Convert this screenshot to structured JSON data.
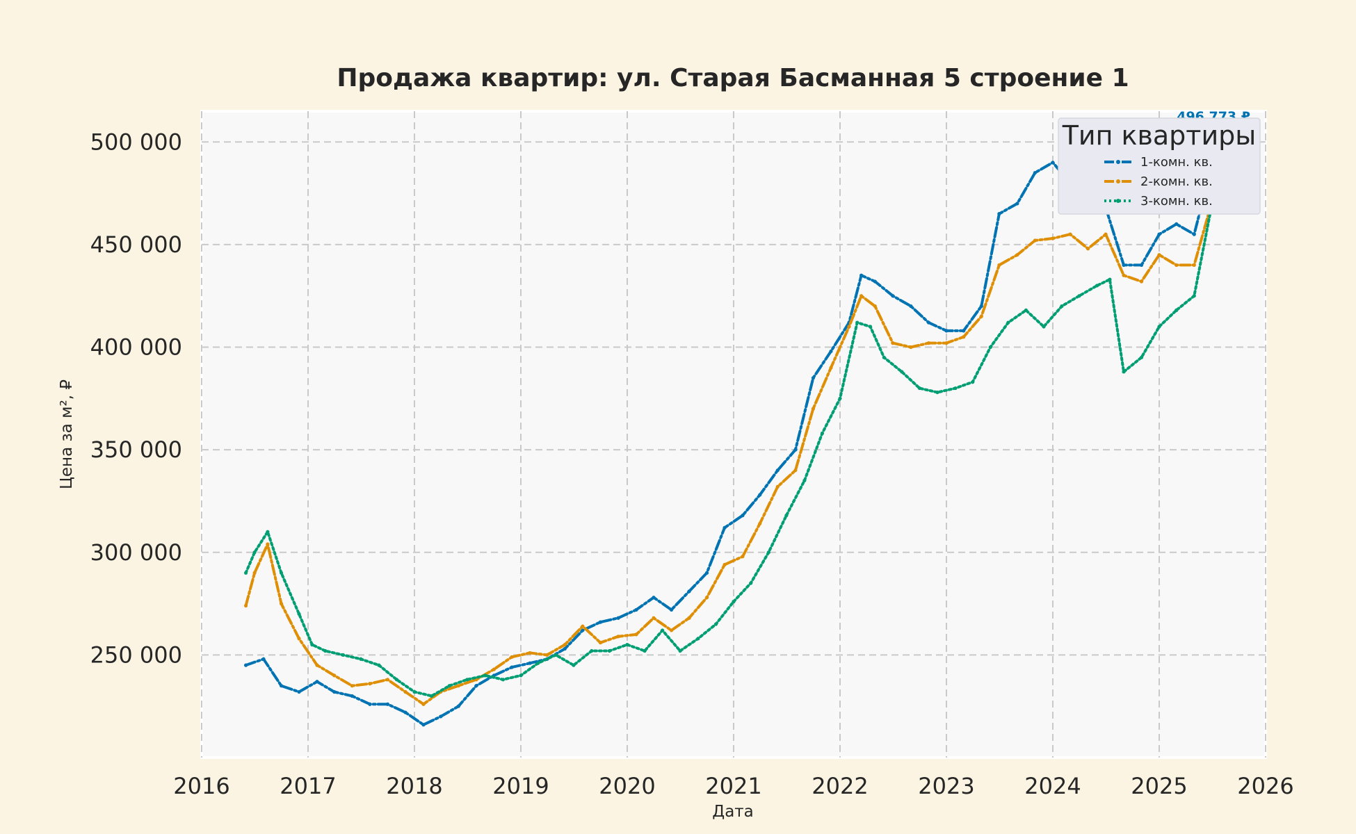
{
  "chart_data": {
    "type": "line",
    "title": "Продажа квартир: ул. Старая Басманная 5 строение 1",
    "xlabel": "Дата",
    "ylabel": "Цена за м², ₽",
    "xlim": [
      2016,
      2026
    ],
    "ylim": [
      200000,
      515000
    ],
    "x_ticks": [
      "2016",
      "2017",
      "2018",
      "2019",
      "2020",
      "2021",
      "2022",
      "2023",
      "2024",
      "2025",
      "2026"
    ],
    "y_ticks": [
      "250 000",
      "300 000",
      "350 000",
      "400 000",
      "450 000",
      "500 000"
    ],
    "grid": true,
    "legend": {
      "title": "Тип квартиры",
      "placement": "top-right"
    },
    "last_value_label": "496 773 ₽",
    "series": [
      {
        "name": "1-комн. кв.",
        "color": "#0173b2",
        "dash": "dashdot",
        "points": [
          [
            "2016-06-01",
            245000
          ],
          [
            "2016-08-01",
            248000
          ],
          [
            "2016-10-01",
            235000
          ],
          [
            "2016-12-01",
            232000
          ],
          [
            "2017-02-01",
            237000
          ],
          [
            "2017-04-01",
            232000
          ],
          [
            "2017-06-01",
            230000
          ],
          [
            "2017-08-01",
            226000
          ],
          [
            "2017-10-01",
            226000
          ],
          [
            "2017-12-01",
            222000
          ],
          [
            "2018-02-01",
            216000
          ],
          [
            "2018-04-01",
            220000
          ],
          [
            "2018-06-01",
            225000
          ],
          [
            "2018-08-01",
            235000
          ],
          [
            "2018-10-01",
            240000
          ],
          [
            "2018-12-01",
            244000
          ],
          [
            "2019-02-01",
            246000
          ],
          [
            "2019-04-01",
            248000
          ],
          [
            "2019-06-01",
            253000
          ],
          [
            "2019-08-01",
            262000
          ],
          [
            "2019-10-01",
            266000
          ],
          [
            "2019-12-01",
            268000
          ],
          [
            "2020-02-01",
            272000
          ],
          [
            "2020-04-01",
            278000
          ],
          [
            "2020-06-01",
            272000
          ],
          [
            "2020-08-01",
            281000
          ],
          [
            "2020-10-01",
            290000
          ],
          [
            "2020-12-01",
            312000
          ],
          [
            "2021-02-01",
            318000
          ],
          [
            "2021-04-01",
            328000
          ],
          [
            "2021-06-01",
            340000
          ],
          [
            "2021-08-01",
            350000
          ],
          [
            "2021-10-01",
            385000
          ],
          [
            "2021-12-01",
            398000
          ],
          [
            "2022-02-01",
            412000
          ],
          [
            "2022-03-15",
            435000
          ],
          [
            "2022-05-01",
            432000
          ],
          [
            "2022-07-01",
            425000
          ],
          [
            "2022-09-01",
            420000
          ],
          [
            "2022-11-01",
            412000
          ],
          [
            "2023-01-01",
            408000
          ],
          [
            "2023-03-01",
            408000
          ],
          [
            "2023-05-01",
            420000
          ],
          [
            "2023-07-01",
            465000
          ],
          [
            "2023-09-01",
            470000
          ],
          [
            "2023-11-01",
            485000
          ],
          [
            "2024-01-01",
            490000
          ],
          [
            "2024-03-01",
            480000
          ],
          [
            "2024-05-01",
            478000
          ],
          [
            "2024-07-01",
            468000
          ],
          [
            "2024-09-01",
            440000
          ],
          [
            "2024-11-01",
            440000
          ],
          [
            "2025-01-01",
            455000
          ],
          [
            "2025-03-01",
            460000
          ],
          [
            "2025-05-01",
            455000
          ],
          [
            "2025-07-15",
            496773
          ]
        ]
      },
      {
        "name": "2-комн. кв.",
        "color": "#de8f05",
        "dash": "dashdot",
        "points": [
          [
            "2016-06-01",
            274000
          ],
          [
            "2016-07-01",
            290000
          ],
          [
            "2016-08-15",
            304000
          ],
          [
            "2016-10-01",
            275000
          ],
          [
            "2016-12-01",
            258000
          ],
          [
            "2017-02-01",
            245000
          ],
          [
            "2017-04-01",
            240000
          ],
          [
            "2017-06-01",
            235000
          ],
          [
            "2017-08-01",
            236000
          ],
          [
            "2017-10-01",
            238000
          ],
          [
            "2017-12-01",
            232000
          ],
          [
            "2018-02-01",
            226000
          ],
          [
            "2018-04-01",
            232000
          ],
          [
            "2018-06-01",
            235000
          ],
          [
            "2018-08-01",
            238000
          ],
          [
            "2018-10-01",
            243000
          ],
          [
            "2018-12-01",
            249000
          ],
          [
            "2019-02-01",
            251000
          ],
          [
            "2019-04-01",
            250000
          ],
          [
            "2019-06-01",
            255000
          ],
          [
            "2019-08-01",
            264000
          ],
          [
            "2019-10-01",
            256000
          ],
          [
            "2019-12-01",
            259000
          ],
          [
            "2020-02-01",
            260000
          ],
          [
            "2020-04-01",
            268000
          ],
          [
            "2020-06-01",
            262000
          ],
          [
            "2020-08-01",
            268000
          ],
          [
            "2020-10-01",
            278000
          ],
          [
            "2020-12-01",
            294000
          ],
          [
            "2021-02-01",
            298000
          ],
          [
            "2021-04-01",
            314000
          ],
          [
            "2021-06-01",
            332000
          ],
          [
            "2021-08-01",
            340000
          ],
          [
            "2021-10-01",
            370000
          ],
          [
            "2021-12-01",
            390000
          ],
          [
            "2022-02-01",
            410000
          ],
          [
            "2022-03-15",
            425000
          ],
          [
            "2022-05-01",
            420000
          ],
          [
            "2022-07-01",
            402000
          ],
          [
            "2022-09-01",
            400000
          ],
          [
            "2022-11-01",
            402000
          ],
          [
            "2023-01-01",
            402000
          ],
          [
            "2023-03-01",
            405000
          ],
          [
            "2023-05-01",
            415000
          ],
          [
            "2023-07-01",
            440000
          ],
          [
            "2023-09-01",
            445000
          ],
          [
            "2023-11-01",
            452000
          ],
          [
            "2024-01-01",
            453000
          ],
          [
            "2024-03-01",
            455000
          ],
          [
            "2024-05-01",
            448000
          ],
          [
            "2024-07-01",
            455000
          ],
          [
            "2024-09-01",
            435000
          ],
          [
            "2024-11-01",
            432000
          ],
          [
            "2025-01-01",
            445000
          ],
          [
            "2025-03-01",
            440000
          ],
          [
            "2025-05-01",
            440000
          ],
          [
            "2025-07-15",
            478000
          ]
        ]
      },
      {
        "name": "3-комн. кв.",
        "color": "#029e73",
        "dash": "dotted",
        "points": [
          [
            "2016-06-01",
            290000
          ],
          [
            "2016-07-01",
            300000
          ],
          [
            "2016-08-15",
            310000
          ],
          [
            "2016-10-01",
            290000
          ],
          [
            "2016-12-01",
            270000
          ],
          [
            "2017-01-15",
            255000
          ],
          [
            "2017-03-01",
            252000
          ],
          [
            "2017-05-01",
            250000
          ],
          [
            "2017-07-01",
            248000
          ],
          [
            "2017-09-01",
            245000
          ],
          [
            "2017-11-01",
            238000
          ],
          [
            "2018-01-01",
            232000
          ],
          [
            "2018-03-01",
            230000
          ],
          [
            "2018-05-01",
            235000
          ],
          [
            "2018-07-01",
            238000
          ],
          [
            "2018-09-01",
            240000
          ],
          [
            "2018-11-01",
            238000
          ],
          [
            "2019-01-01",
            240000
          ],
          [
            "2019-03-01",
            246000
          ],
          [
            "2019-05-01",
            250000
          ],
          [
            "2019-07-01",
            245000
          ],
          [
            "2019-09-01",
            252000
          ],
          [
            "2019-11-01",
            252000
          ],
          [
            "2020-01-01",
            255000
          ],
          [
            "2020-03-01",
            252000
          ],
          [
            "2020-05-01",
            262000
          ],
          [
            "2020-07-01",
            252000
          ],
          [
            "2020-09-01",
            258000
          ],
          [
            "2020-11-01",
            265000
          ],
          [
            "2021-01-01",
            276000
          ],
          [
            "2021-03-01",
            285000
          ],
          [
            "2021-05-01",
            300000
          ],
          [
            "2021-07-01",
            318000
          ],
          [
            "2021-09-01",
            335000
          ],
          [
            "2021-11-01",
            358000
          ],
          [
            "2022-01-01",
            375000
          ],
          [
            "2022-03-01",
            412000
          ],
          [
            "2022-04-15",
            410000
          ],
          [
            "2022-06-01",
            395000
          ],
          [
            "2022-08-01",
            388000
          ],
          [
            "2022-10-01",
            380000
          ],
          [
            "2022-12-01",
            378000
          ],
          [
            "2023-02-01",
            380000
          ],
          [
            "2023-04-01",
            383000
          ],
          [
            "2023-06-01",
            400000
          ],
          [
            "2023-08-01",
            412000
          ],
          [
            "2023-10-01",
            418000
          ],
          [
            "2023-12-01",
            410000
          ],
          [
            "2024-02-01",
            420000
          ],
          [
            "2024-04-01",
            425000
          ],
          [
            "2024-06-01",
            430000
          ],
          [
            "2024-07-15",
            433000
          ],
          [
            "2024-09-01",
            388000
          ],
          [
            "2024-11-01",
            395000
          ],
          [
            "2025-01-01",
            410000
          ],
          [
            "2025-03-01",
            418000
          ],
          [
            "2025-05-01",
            425000
          ],
          [
            "2025-07-15",
            480000
          ]
        ]
      }
    ]
  }
}
